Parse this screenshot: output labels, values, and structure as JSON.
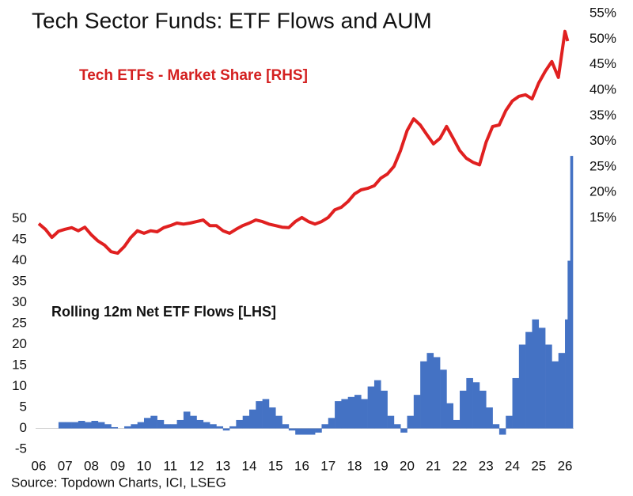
{
  "chart_data": {
    "type": "combo",
    "title": "Tech Sector Funds: ETF Flows and AUM",
    "annotations": [
      "Tech ETFs - Market Share [RHS]",
      "Rolling 12m Net ETF Flows [LHS]"
    ],
    "source": "Source: Topdown Charts, ICI, LSEG",
    "xlim": [
      5.88,
      26.33
    ],
    "xticks": [
      {
        "value": 6,
        "label": "06"
      },
      {
        "value": 7,
        "label": "07"
      },
      {
        "value": 8,
        "label": "08"
      },
      {
        "value": 9,
        "label": "09"
      },
      10,
      11,
      12,
      13,
      14,
      15,
      16,
      17,
      18,
      19,
      20,
      21,
      22,
      23,
      24,
      25,
      26
    ],
    "ylim": [
      -6.5,
      100.3
    ],
    "yticks": [
      -5,
      0,
      5,
      10,
      15,
      20,
      25,
      30,
      35,
      40,
      45,
      50
    ],
    "y2lim": [
      -31.5,
      56.1
    ],
    "y2ticks": [
      {
        "value": 15,
        "label": "15%"
      },
      {
        "value": 20,
        "label": "20%"
      },
      {
        "value": 25,
        "label": "25%"
      },
      {
        "value": 30,
        "label": "30%"
      },
      {
        "value": 35,
        "label": "35%"
      },
      {
        "value": 40,
        "label": "40%"
      },
      {
        "value": 45,
        "label": "45%"
      },
      {
        "value": 50,
        "label": "50%"
      },
      {
        "value": 55,
        "label": "55%"
      }
    ],
    "series": [
      {
        "type": "bar",
        "color": "#4472c4",
        "x": [
          6,
          6.25,
          6.5,
          6.75,
          7,
          7.25,
          7.5,
          7.75,
          8,
          8.25,
          8.5,
          8.75,
          9,
          9.25,
          9.5,
          9.75,
          10,
          10.25,
          10.5,
          10.75,
          11,
          11.25,
          11.5,
          11.75,
          12,
          12.25,
          12.5,
          12.75,
          13,
          13.25,
          13.5,
          13.75,
          14,
          14.25,
          14.5,
          14.75,
          15,
          15.25,
          15.5,
          15.75,
          16,
          16.25,
          16.5,
          16.75,
          17,
          17.25,
          17.5,
          17.75,
          18,
          18.25,
          18.5,
          18.75,
          19,
          19.25,
          19.5,
          19.75,
          20,
          20.25,
          20.5,
          20.75,
          21,
          21.25,
          21.5,
          21.75,
          22,
          22.25,
          22.5,
          22.75,
          23,
          23.25,
          23.5,
          23.75,
          24,
          24.25,
          24.5,
          24.75,
          25,
          25.25,
          25.5,
          25.75,
          26,
          26.1,
          26.2
        ],
        "values": [
          0,
          0,
          0,
          1.5,
          1.5,
          1.5,
          1.8,
          1.5,
          1.8,
          1.5,
          1.0,
          0.3,
          0,
          0.5,
          1.0,
          1.5,
          2.5,
          3.0,
          2.0,
          1.0,
          1.0,
          2.0,
          4.0,
          3.0,
          2.0,
          1.5,
          1.0,
          0.5,
          -0.5,
          0.5,
          2.0,
          3.0,
          4.5,
          6.5,
          7.0,
          5.0,
          3.0,
          1.0,
          -0.5,
          -1.5,
          -1.5,
          -1.5,
          -1.0,
          1.0,
          2.5,
          6.5,
          7.0,
          7.5,
          8.0,
          7.0,
          10.0,
          11.5,
          9.0,
          3.0,
          1.0,
          -1.0,
          3.0,
          8.0,
          16.0,
          18.0,
          17.0,
          14.0,
          6.0,
          2.0,
          9.0,
          12.0,
          11.0,
          9.0,
          5.0,
          1.0,
          -1.5,
          3.0,
          12.0,
          20.0,
          23.0,
          26.0,
          24.0,
          20.0,
          16.0,
          18.0,
          26.0,
          40.0,
          65.0
        ]
      },
      {
        "type": "line",
        "axis": "y2",
        "color": "#e02020",
        "x": [
          6,
          6.25,
          6.5,
          6.75,
          7,
          7.25,
          7.5,
          7.75,
          8,
          8.25,
          8.5,
          8.75,
          9,
          9.25,
          9.5,
          9.75,
          10,
          10.25,
          10.5,
          10.75,
          11,
          11.25,
          11.5,
          11.75,
          12,
          12.25,
          12.5,
          12.75,
          13,
          13.25,
          13.5,
          13.75,
          14,
          14.25,
          14.5,
          14.75,
          15,
          15.25,
          15.5,
          15.75,
          16,
          16.25,
          16.5,
          16.75,
          17,
          17.25,
          17.5,
          17.75,
          18,
          18.25,
          18.5,
          18.75,
          19,
          19.25,
          19.5,
          19.75,
          20,
          20.25,
          20.5,
          20.75,
          21,
          21.25,
          21.5,
          21.75,
          22,
          22.25,
          22.5,
          22.75,
          23,
          23.25,
          23.5,
          23.75,
          24,
          24.25,
          24.5,
          24.75,
          25,
          25.25,
          25.5,
          25.75,
          26,
          26.1
        ],
        "values": [
          13.9,
          12.8,
          11.2,
          12.4,
          12.8,
          13.1,
          12.5,
          13.2,
          11.7,
          10.5,
          9.7,
          8.4,
          8.1,
          9.4,
          11.2,
          12.5,
          12.0,
          12.5,
          12.3,
          13.1,
          13.5,
          14.0,
          13.8,
          14.0,
          14.3,
          14.6,
          13.5,
          13.5,
          12.5,
          12.0,
          12.8,
          13.5,
          14.0,
          14.6,
          14.3,
          13.8,
          13.5,
          13.2,
          13.1,
          14.3,
          15.1,
          14.3,
          13.8,
          14.3,
          15.1,
          16.6,
          17.1,
          18.2,
          19.7,
          20.5,
          20.8,
          21.3,
          22.8,
          23.6,
          25.1,
          28.2,
          32.1,
          34.4,
          33.2,
          31.3,
          29.5,
          30.6,
          32.9,
          30.6,
          28.2,
          26.7,
          25.9,
          25.4,
          29.8,
          32.9,
          33.2,
          36.0,
          37.9,
          38.8,
          39.1,
          38.3,
          41.4,
          43.7,
          45.6,
          42.5,
          51.5,
          49.6
        ]
      }
    ]
  }
}
